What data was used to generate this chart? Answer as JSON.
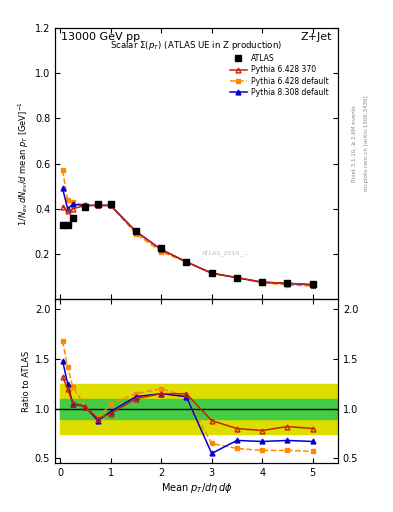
{
  "title_top": "13000 GeV pp",
  "title_right": "Z+Jet",
  "right_label1": "Rivet 3.1.10, ≥ 2.6M events",
  "right_label2": "mcplots.cern.ch [arXiv:1306.3436]",
  "main_title": "Scalar Σ(p_T) (ATLAS UE in Z production)",
  "xlabel": "Mean $p_T/d\\eta\\,d\\phi$",
  "ylabel_main": "$1/N_{ev}\\,dN_{ev}/d$ mean $p_T$ [GeV]$^{-1}$",
  "ylabel_ratio": "Ratio to ATLAS",
  "watermark": "ATLAS_2019_...",
  "atlas_x": [
    0.05,
    0.15,
    0.25,
    0.5,
    0.75,
    1.0,
    1.5,
    2.0,
    2.5,
    3.0,
    3.5,
    4.0,
    4.5,
    5.0
  ],
  "atlas_y": [
    0.33,
    0.33,
    0.36,
    0.41,
    0.42,
    0.42,
    0.3,
    0.225,
    0.165,
    0.115,
    0.095,
    0.075,
    0.07,
    0.065
  ],
  "py6370_x": [
    0.05,
    0.15,
    0.25,
    0.5,
    0.75,
    1.0,
    1.5,
    2.0,
    2.5,
    3.0,
    3.5,
    4.0,
    4.5,
    5.0
  ],
  "py6370_y": [
    0.41,
    0.39,
    0.4,
    0.415,
    0.415,
    0.415,
    0.3,
    0.22,
    0.165,
    0.115,
    0.095,
    0.075,
    0.07,
    0.065
  ],
  "py6def_x": [
    0.05,
    0.15,
    0.25,
    0.5,
    0.75,
    1.0,
    1.5,
    2.0,
    2.5,
    3.0,
    3.5,
    4.0,
    4.5,
    5.0
  ],
  "py6def_y": [
    0.57,
    0.44,
    0.43,
    0.415,
    0.415,
    0.415,
    0.29,
    0.21,
    0.165,
    0.115,
    0.095,
    0.073,
    0.063,
    0.058
  ],
  "py8def_x": [
    0.05,
    0.15,
    0.25,
    0.5,
    0.75,
    1.0,
    1.5,
    2.0,
    2.5,
    3.0,
    3.5,
    4.0,
    4.5,
    5.0
  ],
  "py8def_y": [
    0.49,
    0.4,
    0.42,
    0.415,
    0.415,
    0.415,
    0.3,
    0.22,
    0.165,
    0.115,
    0.095,
    0.075,
    0.07,
    0.063
  ],
  "ratio_py6370_x": [
    0.05,
    0.15,
    0.25,
    0.5,
    0.75,
    1.0,
    1.5,
    2.0,
    2.5,
    3.0,
    3.5,
    4.0,
    4.5,
    5.0
  ],
  "ratio_py6370_y": [
    1.32,
    1.2,
    1.06,
    1.02,
    0.9,
    0.95,
    1.1,
    1.15,
    1.15,
    0.88,
    0.8,
    0.78,
    0.82,
    0.8
  ],
  "ratio_py6def_x": [
    0.05,
    0.15,
    0.25,
    0.5,
    0.75,
    1.0,
    1.5,
    2.0,
    2.5,
    3.0,
    3.5,
    4.0,
    4.5,
    5.0
  ],
  "ratio_py6def_y": [
    1.68,
    1.42,
    1.22,
    1.02,
    0.9,
    1.05,
    1.15,
    1.2,
    1.12,
    0.65,
    0.6,
    0.58,
    0.58,
    0.57
  ],
  "ratio_py8def_x": [
    0.05,
    0.15,
    0.25,
    0.5,
    0.75,
    1.0,
    1.5,
    2.0,
    2.5,
    3.0,
    3.5,
    4.0,
    4.5,
    5.0
  ],
  "ratio_py8def_y": [
    1.48,
    1.25,
    1.05,
    1.02,
    0.88,
    0.97,
    1.12,
    1.15,
    1.12,
    0.55,
    0.68,
    0.67,
    0.68,
    0.67
  ],
  "band_x": [
    0.0,
    0.5,
    1.0,
    1.5,
    2.0,
    2.5,
    3.0,
    3.5,
    4.0,
    4.5,
    5.5
  ],
  "band_green_low": [
    0.9,
    0.9,
    0.9,
    0.9,
    0.9,
    0.9,
    0.9,
    0.9,
    0.9,
    0.9,
    0.9
  ],
  "band_green_high": [
    1.1,
    1.1,
    1.1,
    1.1,
    1.1,
    1.1,
    1.1,
    1.1,
    1.1,
    1.1,
    1.1
  ],
  "band_yellow_low": [
    0.75,
    0.75,
    0.75,
    0.75,
    0.75,
    0.75,
    0.75,
    0.75,
    0.75,
    0.75,
    0.75
  ],
  "band_yellow_high": [
    1.25,
    1.25,
    1.25,
    1.25,
    1.25,
    1.25,
    1.25,
    1.25,
    1.25,
    1.25,
    1.25
  ],
  "color_atlas": "#000000",
  "color_py6370": "#cc2200",
  "color_py6def": "#ff8800",
  "color_py8def": "#0000cc",
  "color_band_green": "#44cc44",
  "color_band_yellow": "#dddd00",
  "main_ylim": [
    0.0,
    1.2
  ],
  "ratio_ylim": [
    0.45,
    2.1
  ],
  "xlim": [
    -0.1,
    5.5
  ],
  "main_yticks": [
    0.2,
    0.4,
    0.6,
    0.8,
    1.0,
    1.2
  ],
  "ratio_yticks": [
    0.5,
    1.0,
    1.5,
    2.0
  ]
}
